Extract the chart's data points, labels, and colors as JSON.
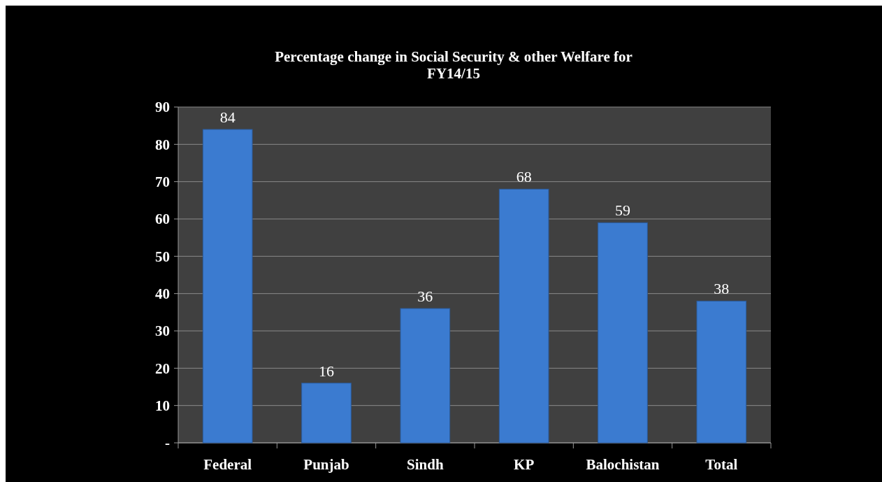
{
  "chart_data": {
    "type": "bar",
    "title": "Percentage  change in Social Security & other Welfare for FY14/15",
    "categories": [
      "Federal",
      "Punjab",
      "Sindh",
      "KP",
      "Balochistan",
      "Total"
    ],
    "values": [
      84,
      16,
      36,
      68,
      59,
      38
    ],
    "color": "#3b7bd0",
    "ylim": [
      0,
      90
    ],
    "yticks": [
      {
        "value": 0,
        "label": "-"
      },
      10,
      20,
      30,
      40,
      50,
      60,
      70,
      80,
      90
    ],
    "grid": "y",
    "data_labels": true
  }
}
